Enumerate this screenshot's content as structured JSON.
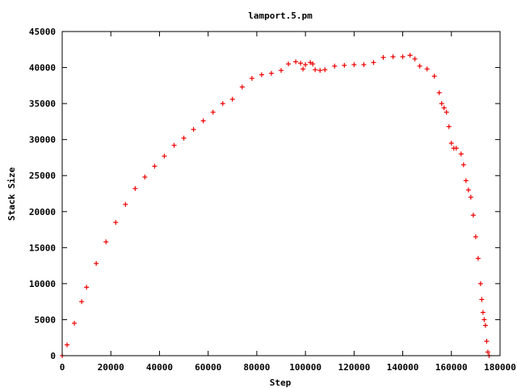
{
  "chart_data": {
    "type": "scatter",
    "title": "lamport.5.pm",
    "xlabel": "Step",
    "ylabel": "Stack Size",
    "xlim": [
      0,
      180000
    ],
    "ylim": [
      0,
      45000
    ],
    "xticks": [
      0,
      20000,
      40000,
      60000,
      80000,
      100000,
      120000,
      140000,
      160000,
      180000
    ],
    "yticks": [
      0,
      5000,
      10000,
      15000,
      20000,
      25000,
      30000,
      35000,
      40000,
      45000
    ],
    "grid": false,
    "legend": "none",
    "marker": "+",
    "color": "#ee0000",
    "series": [
      {
        "x": [
          0,
          2000,
          5000,
          8000,
          10000,
          14000,
          18000,
          22000,
          26000,
          30000,
          34000,
          38000,
          42000,
          46000,
          50000,
          54000,
          58000,
          62000,
          66000,
          70000,
          74000,
          78000,
          82000,
          86000,
          90000,
          93000,
          96000,
          98000,
          99000,
          100000,
          102000,
          103000,
          104000,
          106000,
          108000,
          112000,
          116000,
          120000,
          124000,
          128000,
          132000,
          136000,
          140000,
          143000,
          145000,
          147000,
          150000,
          153000,
          155000,
          156000,
          157000,
          158000,
          159000,
          160000,
          161000,
          162000,
          164000,
          165000,
          166000,
          167000,
          168000,
          169000,
          170000,
          171000,
          172000,
          172500,
          173000,
          173500,
          174000,
          174500,
          175000,
          175500
        ],
        "y": [
          0,
          1500,
          4500,
          7500,
          9500,
          12800,
          15800,
          18500,
          21000,
          23200,
          24800,
          26300,
          27700,
          29200,
          30200,
          31400,
          32600,
          33800,
          35000,
          35600,
          37300,
          38500,
          39000,
          39200,
          39600,
          40500,
          40800,
          40600,
          39800,
          40400,
          40700,
          40500,
          39700,
          39600,
          39700,
          40200,
          40300,
          40400,
          40400,
          40700,
          41400,
          41500,
          41500,
          41700,
          41200,
          40200,
          39800,
          38800,
          36500,
          35000,
          34400,
          33800,
          31800,
          29500,
          28800,
          28800,
          28000,
          26500,
          24300,
          23000,
          22000,
          19500,
          16500,
          13500,
          10000,
          7800,
          6000,
          5000,
          4200,
          2000,
          500,
          0
        ]
      }
    ]
  }
}
